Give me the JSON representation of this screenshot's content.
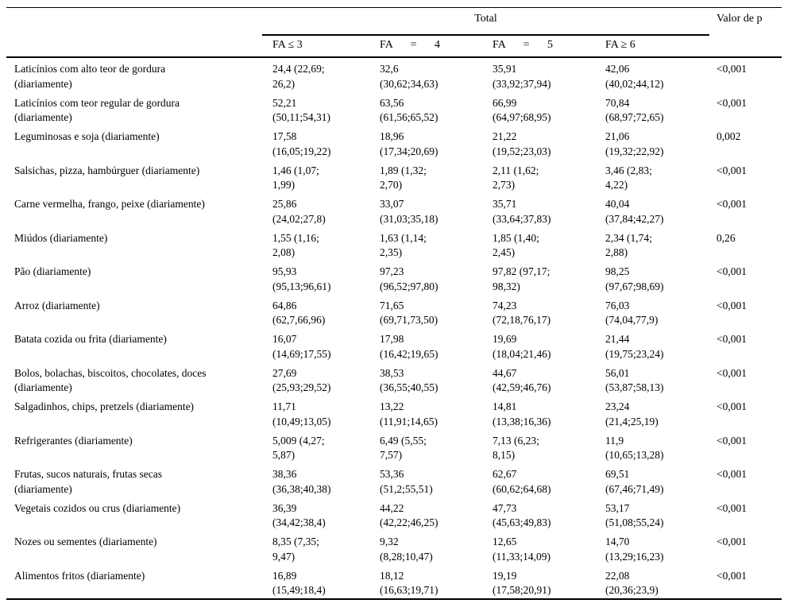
{
  "table": {
    "header": {
      "total_label": "Total",
      "p_label": "Valor de p",
      "subcolumns": [
        "FA ≤ 3",
        "FA = 4",
        "FA = 5",
        "FA ≥ 6"
      ]
    },
    "rows": [
      {
        "label": "Laticínios com alto teor de gordura\n(diariamente)",
        "values": [
          "24,4 (22,69;\n26,2)",
          "32,6\n(30,62;34,63)",
          "35,91\n(33,92;37,94)",
          "42,06\n(40,02;44,12)"
        ],
        "p": "<0,001"
      },
      {
        "label": "Laticínios com teor regular de gordura\n(diariamente)",
        "values": [
          "52,21\n(50,11;54,31)",
          "63,56\n(61,56;65,52)",
          "66,99\n(64,97;68,95)",
          "70,84\n(68,97;72,65)"
        ],
        "p": "<0,001"
      },
      {
        "label": "Leguminosas e soja (diariamente)",
        "values": [
          "17,58\n(16,05;19,22)",
          "18,96\n(17,34;20,69)",
          "21,22\n(19,52;23,03)",
          "21,06\n(19,32;22,92)"
        ],
        "p": "0,002"
      },
      {
        "label": "Salsichas, pizza, hambúrguer (diariamente)",
        "values": [
          "1,46 (1,07;\n1,99)",
          "1,89 (1,32;\n2,70)",
          "2,11 (1,62;\n2,73)",
          "3,46 (2,83;\n4,22)"
        ],
        "p": "<0,001"
      },
      {
        "label": "Carne vermelha, frango, peixe (diariamente)",
        "values": [
          "25,86\n(24,02;27,8)",
          "33,07\n(31,03;35,18)",
          "35,71\n(33,64;37,83)",
          "40,04\n(37,84;42,27)"
        ],
        "p": "<0,001"
      },
      {
        "label": "Miúdos (diariamente)",
        "values": [
          "1,55 (1,16;\n2,08)",
          "1,63 (1,14;\n2,35)",
          "1,85 (1,40;\n2,45)",
          "2,34 (1,74;\n2,88)"
        ],
        "p": "0,26"
      },
      {
        "label": "Pão (diariamente)",
        "values": [
          "95,93\n(95,13;96,61)",
          "97,23\n(96,52;97,80)",
          "97,82 (97,17;\n98,32)",
          "98,25\n(97,67;98,69)"
        ],
        "p": "<0,001"
      },
      {
        "label": "Arroz (diariamente)",
        "values": [
          "64,86\n(62,7,66,96)",
          "71,65\n(69,71,73,50)",
          "74,23\n(72,18,76,17)",
          "76,03\n(74,04,77,9)"
        ],
        "p": "<0,001"
      },
      {
        "label": "Batata cozida ou frita (diariamente)",
        "values": [
          "16,07\n(14,69;17,55)",
          "17,98\n(16,42;19,65)",
          "19,69\n(18,04;21,46)",
          "21,44\n(19,75;23,24)"
        ],
        "p": "<0,001"
      },
      {
        "label": "Bolos, bolachas, biscoitos, chocolates, doces\n(diariamente)",
        "values": [
          "27,69\n(25,93;29,52)",
          "38,53\n(36,55;40,55)",
          "44,67\n(42,59;46,76)",
          "56,01\n(53,87;58,13)"
        ],
        "p": "<0,001"
      },
      {
        "label": "Salgadinhos, chips, pretzels (diariamente)",
        "values": [
          "11,71\n(10,49;13,05)",
          "13,22\n(11,91;14,65)",
          "14,81\n(13,38;16,36)",
          "23,24\n(21,4;25,19)"
        ],
        "p": "<0,001"
      },
      {
        "label": "Refrigerantes (diariamente)",
        "values": [
          "5,009 (4,27;\n5,87)",
          "6,49 (5,55;\n7,57)",
          "7,13 (6,23;\n8,15)",
          "11,9\n(10,65;13,28)"
        ],
        "p": "<0,001"
      },
      {
        "label": "Frutas, sucos naturais, frutas secas\n(diariamente)",
        "values": [
          "38,36\n(36,38;40,38)",
          "53,36\n(51,2;55,51)",
          "62,67\n(60,62;64,68)",
          "69,51\n(67,46;71,49)"
        ],
        "p": "<0,001"
      },
      {
        "label": "Vegetais cozidos ou crus (diariamente)",
        "values": [
          "36,39\n(34,42;38,4)",
          "44,22\n(42,22;46,25)",
          "47,73\n(45,63;49,83)",
          "53,17\n(51,08;55,24)"
        ],
        "p": "<0,001"
      },
      {
        "label": "Nozes ou sementes (diariamente)",
        "values": [
          "8,35 (7,35;\n9,47)",
          "9,32\n(8,28;10,47)",
          "12,65\n(11,33;14,09)",
          "14,70\n(13,29;16,23)"
        ],
        "p": "<0,001"
      },
      {
        "label": "Alimentos fritos (diariamente)",
        "values": [
          "16,89\n(15,49;18,4)",
          "18,12\n(16,63;19,71)",
          "19,19\n(17,58;20,91)",
          "22,08\n(20,36;23,9)"
        ],
        "p": "<0,001"
      }
    ]
  }
}
